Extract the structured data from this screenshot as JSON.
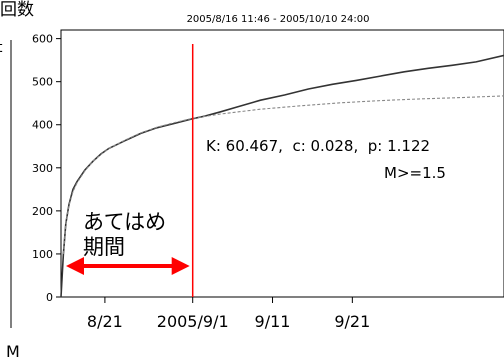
{
  "chart_data": {
    "type": "line",
    "title": "2005/8/16 11:46  -  2005/10/10 24:00",
    "ylabel": "回数",
    "xlabel_left_fragment": "M",
    "left_edge_fragment": "t",
    "ylim": [
      0,
      620
    ],
    "yticks": [
      0,
      100,
      200,
      300,
      400,
      500,
      600
    ],
    "xticks": [
      {
        "label": "8/21",
        "day": 5.5
      },
      {
        "label": "2005/9/1",
        "day": 16.5
      },
      {
        "label": "9/11",
        "day": 26.5
      },
      {
        "label": "9/21",
        "day": 36.5
      }
    ],
    "xlim_days": [
      0,
      55.5
    ],
    "series": [
      {
        "kind": "observed",
        "color": "#333333",
        "x": [
          0,
          0.3,
          0.6,
          1,
          1.5,
          2,
          3,
          4,
          5,
          6,
          8,
          10,
          12,
          14,
          16.5,
          18,
          20,
          22,
          25,
          28,
          31,
          34,
          37,
          40,
          43,
          46,
          49,
          52,
          55.5
        ],
        "y": [
          0,
          100,
          170,
          215,
          250,
          268,
          295,
          315,
          332,
          345,
          363,
          380,
          393,
          402,
          414,
          420,
          430,
          441,
          457,
          469,
          483,
          494,
          503,
          513,
          523,
          531,
          538,
          546,
          561
        ]
      },
      {
        "kind": "fit",
        "style": "dashed",
        "color": "#888888",
        "x": [
          0.3,
          0.6,
          1,
          1.5,
          2,
          3,
          4,
          5,
          6,
          8,
          10,
          12,
          14,
          16.5,
          20,
          25,
          30,
          35,
          40,
          45,
          50,
          55.5
        ],
        "y": [
          100,
          170,
          213,
          245,
          265,
          293,
          315,
          331,
          345,
          364,
          381,
          394,
          404,
          415,
          425,
          436,
          444,
          451,
          456,
          460,
          463,
          467
        ]
      }
    ],
    "fit_start_day": 16.5,
    "annotations": {
      "params_line1": "K: 60.467,  c: 0.028,  p: 1.122",
      "params_line2": "M>=1.5",
      "period_label_1": "あてはめ",
      "period_label_2": "期間"
    },
    "colors": {
      "marker": "#ff0000",
      "axis": "#000000"
    }
  }
}
